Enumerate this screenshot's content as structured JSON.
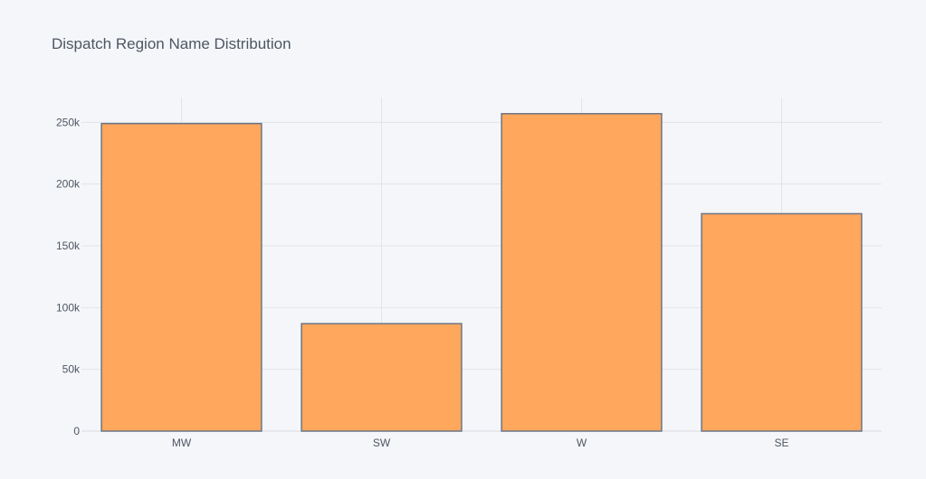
{
  "chart_data": {
    "type": "bar",
    "title": "Dispatch Region Name Distribution",
    "xlabel": "",
    "ylabel": "",
    "categories": [
      "MW",
      "SW",
      "W",
      "SE"
    ],
    "values": [
      249000,
      87000,
      257000,
      176000
    ],
    "ylim": [
      0,
      270000
    ],
    "yticks": [
      0,
      50000,
      100000,
      150000,
      200000,
      250000
    ],
    "ytick_labels": [
      "0",
      "50k",
      "100k",
      "150k",
      "200k",
      "250k"
    ],
    "grid": true,
    "legend": "none",
    "colors": {
      "background": "#f5f6f9",
      "bar_fill": "#ffa75c",
      "bar_stroke": "#6c7686",
      "grid": "#e1e4ea",
      "text": "#4d5663"
    }
  }
}
